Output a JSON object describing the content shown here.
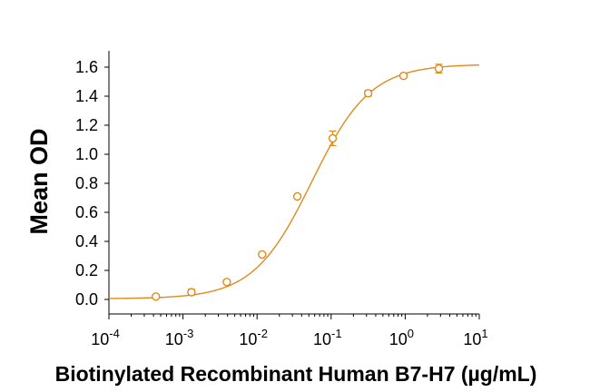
{
  "chart_data": {
    "type": "scatter",
    "title": "",
    "xlabel": "Biotinylated Recombinant Human B7-H7 (µg/mL)",
    "ylabel": "Mean OD",
    "xscale": "log",
    "xlim": [
      0.0001,
      10
    ],
    "ylim": [
      -0.1,
      1.7
    ],
    "x_ticks": [
      {
        "value": 0.0001,
        "base": "10",
        "exp": "-4"
      },
      {
        "value": 0.001,
        "base": "10",
        "exp": "-3"
      },
      {
        "value": 0.01,
        "base": "10",
        "exp": "-2"
      },
      {
        "value": 0.1,
        "base": "10",
        "exp": "-1"
      },
      {
        "value": 1,
        "base": "10",
        "exp": "0"
      },
      {
        "value": 10,
        "base": "10",
        "exp": "1"
      }
    ],
    "y_ticks": [
      {
        "value": 0.0,
        "label": "0.0"
      },
      {
        "value": 0.2,
        "label": "0.2"
      },
      {
        "value": 0.4,
        "label": "0.4"
      },
      {
        "value": 0.6,
        "label": "0.6"
      },
      {
        "value": 0.8,
        "label": "0.8"
      },
      {
        "value": 1.0,
        "label": "1.0"
      },
      {
        "value": 1.2,
        "label": "1.2"
      },
      {
        "value": 1.4,
        "label": "1.4"
      },
      {
        "value": 1.6,
        "label": "1.6"
      }
    ],
    "grid": false,
    "legend": "none",
    "series": [
      {
        "color": "#E08A1E",
        "marker": "open-circle",
        "points": [
          {
            "x": 0.00043,
            "y": 0.02,
            "err": 0.01
          },
          {
            "x": 0.0013,
            "y": 0.05,
            "err": 0.02
          },
          {
            "x": 0.0039,
            "y": 0.12,
            "err": 0.01
          },
          {
            "x": 0.0117,
            "y": 0.31,
            "err": 0.01
          },
          {
            "x": 0.035,
            "y": 0.71,
            "err": 0.01
          },
          {
            "x": 0.105,
            "y": 1.11,
            "err": 0.05
          },
          {
            "x": 0.316,
            "y": 1.42,
            "err": 0.02
          },
          {
            "x": 0.95,
            "y": 1.54,
            "err": 0.01
          },
          {
            "x": 2.85,
            "y": 1.59,
            "err": 0.03
          }
        ]
      }
    ],
    "fit_curve": {
      "model": "4PL",
      "bottom": 0.005,
      "top": 1.62,
      "ec50": 0.055,
      "hill": 1.1
    }
  }
}
